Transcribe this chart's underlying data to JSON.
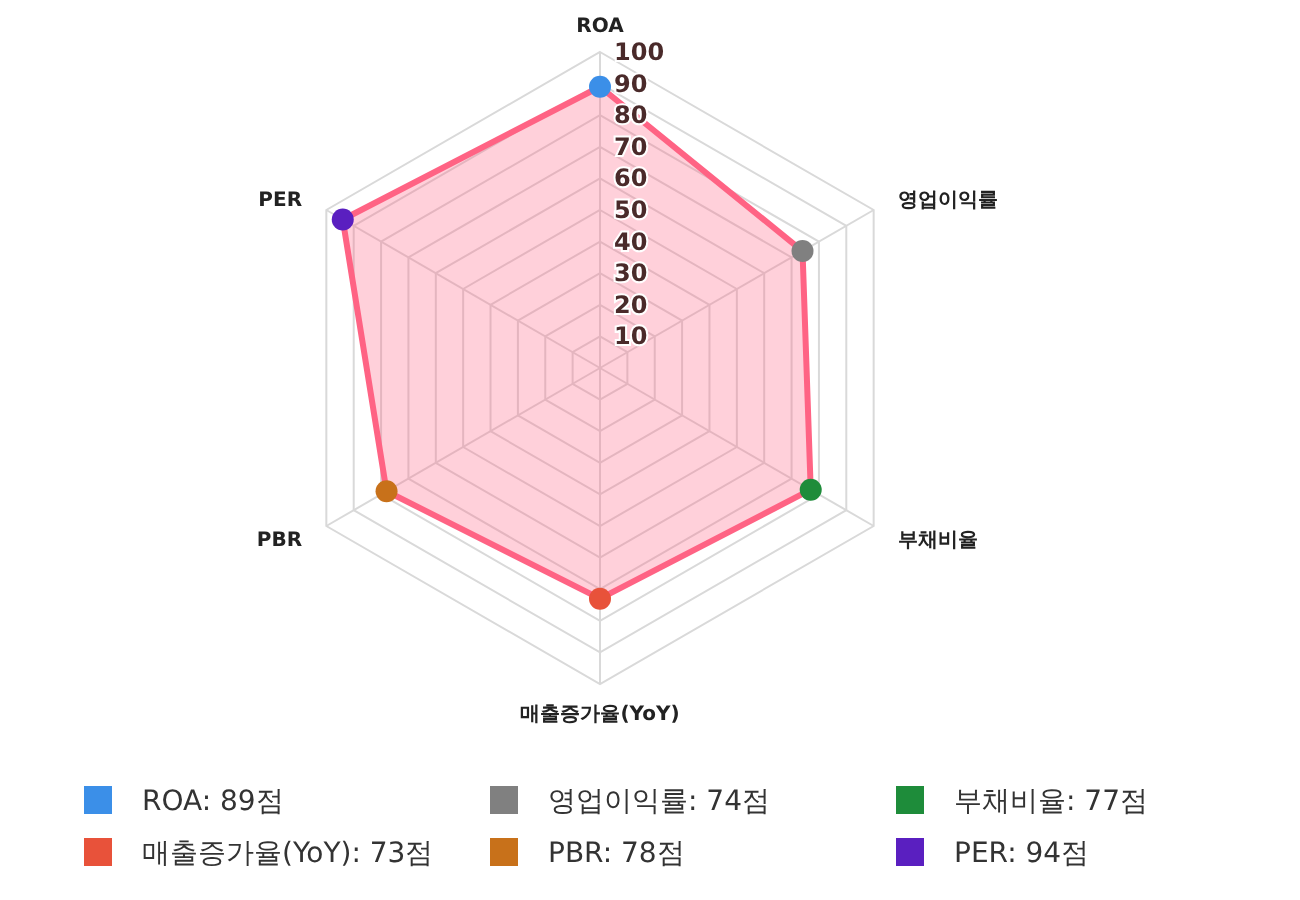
{
  "chart_data": {
    "type": "radar",
    "categories": [
      "ROA",
      "영업이익률",
      "부채비율",
      "매출증가율(YoY)",
      "PBR",
      "PER"
    ],
    "series": [
      {
        "color": "#ff6384",
        "values": [
          89,
          74,
          77,
          73,
          78,
          94
        ],
        "colors": [
          "#3b8fe8",
          "#808080",
          "#1e8c3a",
          "#e8523a",
          "#c8711a",
          "#5a1fc0"
        ]
      }
    ],
    "annotations": [
      "ROA: 89점",
      "영업이익률: 74점",
      "부채비율: 77점",
      "매출증가율(YoY): 73점",
      "PBR: 78점",
      "PER: 94점"
    ],
    "ylim": [
      0,
      100
    ],
    "yticks": [
      10,
      20,
      30,
      40,
      50,
      60,
      70,
      80,
      90,
      100
    ],
    "grid": true,
    "marker": "circle"
  }
}
